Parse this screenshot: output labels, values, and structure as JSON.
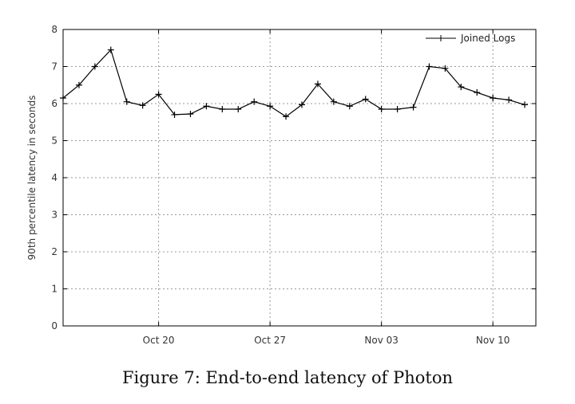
{
  "caption": "Figure 7: End-to-end latency of Photon",
  "chart_data": {
    "type": "line",
    "title": "",
    "xlabel": "",
    "ylabel": "90th percentile latency in seconds",
    "ylim": [
      0,
      8
    ],
    "yticks": [
      0,
      1,
      2,
      3,
      4,
      5,
      6,
      7,
      8
    ],
    "x_start_date": "Oct 14",
    "x_step_days": 1,
    "xlim_days": [
      0,
      29.7
    ],
    "xticks": [
      {
        "label": "Oct 20",
        "day": 6
      },
      {
        "label": "Oct 27",
        "day": 13
      },
      {
        "label": "Nov 03",
        "day": 20
      },
      {
        "label": "Nov 10",
        "day": 27
      }
    ],
    "grid": true,
    "legend_position": "top-right",
    "series": [
      {
        "name": "Joined Logs",
        "color": "#000000",
        "marker": "plus",
        "values": [
          6.15,
          6.5,
          7.0,
          7.45,
          6.05,
          5.95,
          6.25,
          5.7,
          5.72,
          5.93,
          5.85,
          5.85,
          6.05,
          5.93,
          5.65,
          5.97,
          6.53,
          6.05,
          5.93,
          6.12,
          5.85,
          5.85,
          5.9,
          7.0,
          6.95,
          6.45,
          6.3,
          6.15,
          6.1,
          5.97
        ]
      }
    ]
  }
}
